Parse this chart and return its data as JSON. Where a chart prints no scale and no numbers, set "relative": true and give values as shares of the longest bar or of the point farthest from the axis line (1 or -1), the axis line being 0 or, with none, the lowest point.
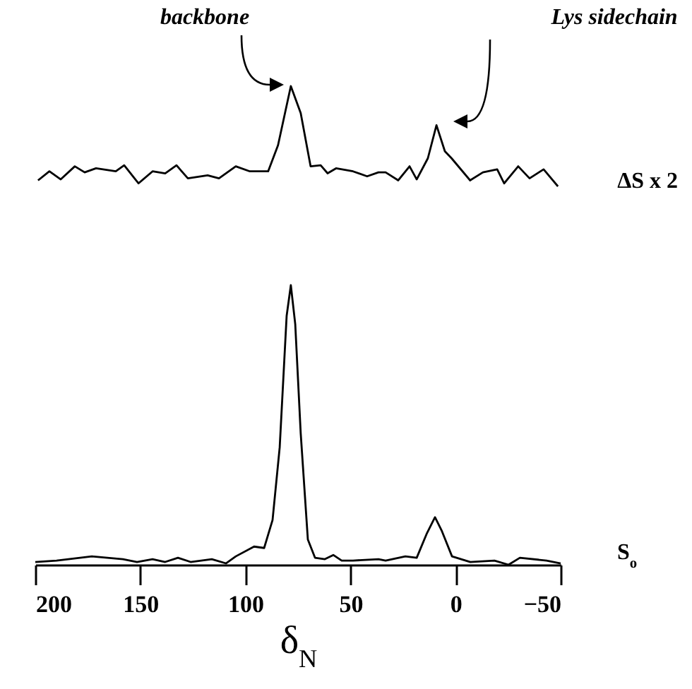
{
  "chart_data": [
    {
      "type": "line",
      "relative": true,
      "tick_labels": false,
      "xlim": [
        200,
        -50
      ],
      "annotations": [
        "backbone",
        "Lys sidechain"
      ],
      "series": [
        {
          "name": "ΔS x 2",
          "color": "#000000",
          "x": [
            198.7,
            193.3,
            187.9,
            181.2,
            176.5,
            171.1,
            161.7,
            157.7,
            150.9,
            144.2,
            138.2,
            132.8,
            127.4,
            118.0,
            112.6,
            104.6,
            97.9,
            89.2,
            84.5,
            78.4,
            73.7,
            69.0,
            64.2,
            60.9,
            56.9,
            48.8,
            42.1,
            36.7,
            33.3,
            27.3,
            21.9,
            18.5,
            13.2,
            9.1,
            5.1,
            1.9,
            -6.9,
            -13.0,
            -19.8,
            -23.1,
            -29.8,
            -35.2,
            -41.9,
            -48.7
          ],
          "values": [
            0.06,
            0.15,
            0.07,
            0.2,
            0.14,
            0.18,
            0.15,
            0.21,
            0.03,
            0.15,
            0.13,
            0.21,
            0.08,
            0.11,
            0.08,
            0.2,
            0.15,
            0.15,
            0.41,
            1.0,
            0.73,
            0.2,
            0.21,
            0.13,
            0.18,
            0.15,
            0.1,
            0.14,
            0.14,
            0.06,
            0.2,
            0.07,
            0.28,
            0.61,
            0.35,
            0.28,
            0.06,
            0.14,
            0.17,
            0.03,
            0.2,
            0.08,
            0.17,
            0.0
          ]
        }
      ]
    },
    {
      "type": "line",
      "relative": true,
      "xlim": [
        200,
        -50
      ],
      "xticks": [
        200,
        150,
        100,
        50,
        0,
        -50
      ],
      "xlabel": "δ$_{N}$",
      "series": [
        {
          "name": "S$_{o}$",
          "color": "#000000",
          "x": [
            200,
            189.9,
            173.1,
            158.3,
            151.6,
            144.2,
            138.2,
            132.1,
            126.1,
            116.0,
            109.3,
            104.6,
            95.9,
            91.1,
            87.1,
            83.7,
            80.4,
            78.4,
            76.3,
            73.7,
            70.3,
            66.9,
            62.2,
            58.2,
            54.2,
            48.8,
            36.7,
            33.3,
            23.9,
            18.5,
            13.8,
            9.8,
            6.5,
            1.7,
            -7.0,
            -18.5,
            -25.2,
            -30.6,
            -43.3,
            -50
          ],
          "values": [
            0.01,
            0.015,
            0.03,
            0.02,
            0.01,
            0.02,
            0.01,
            0.025,
            0.01,
            0.02,
            0.005,
            0.03,
            0.065,
            0.06,
            0.16,
            0.42,
            0.89,
            1.0,
            0.86,
            0.47,
            0.09,
            0.025,
            0.02,
            0.035,
            0.015,
            0.015,
            0.02,
            0.015,
            0.03,
            0.025,
            0.11,
            0.17,
            0.12,
            0.03,
            0.01,
            0.015,
            0,
            0.025,
            0.015,
            0.005
          ]
        }
      ]
    }
  ]
}
